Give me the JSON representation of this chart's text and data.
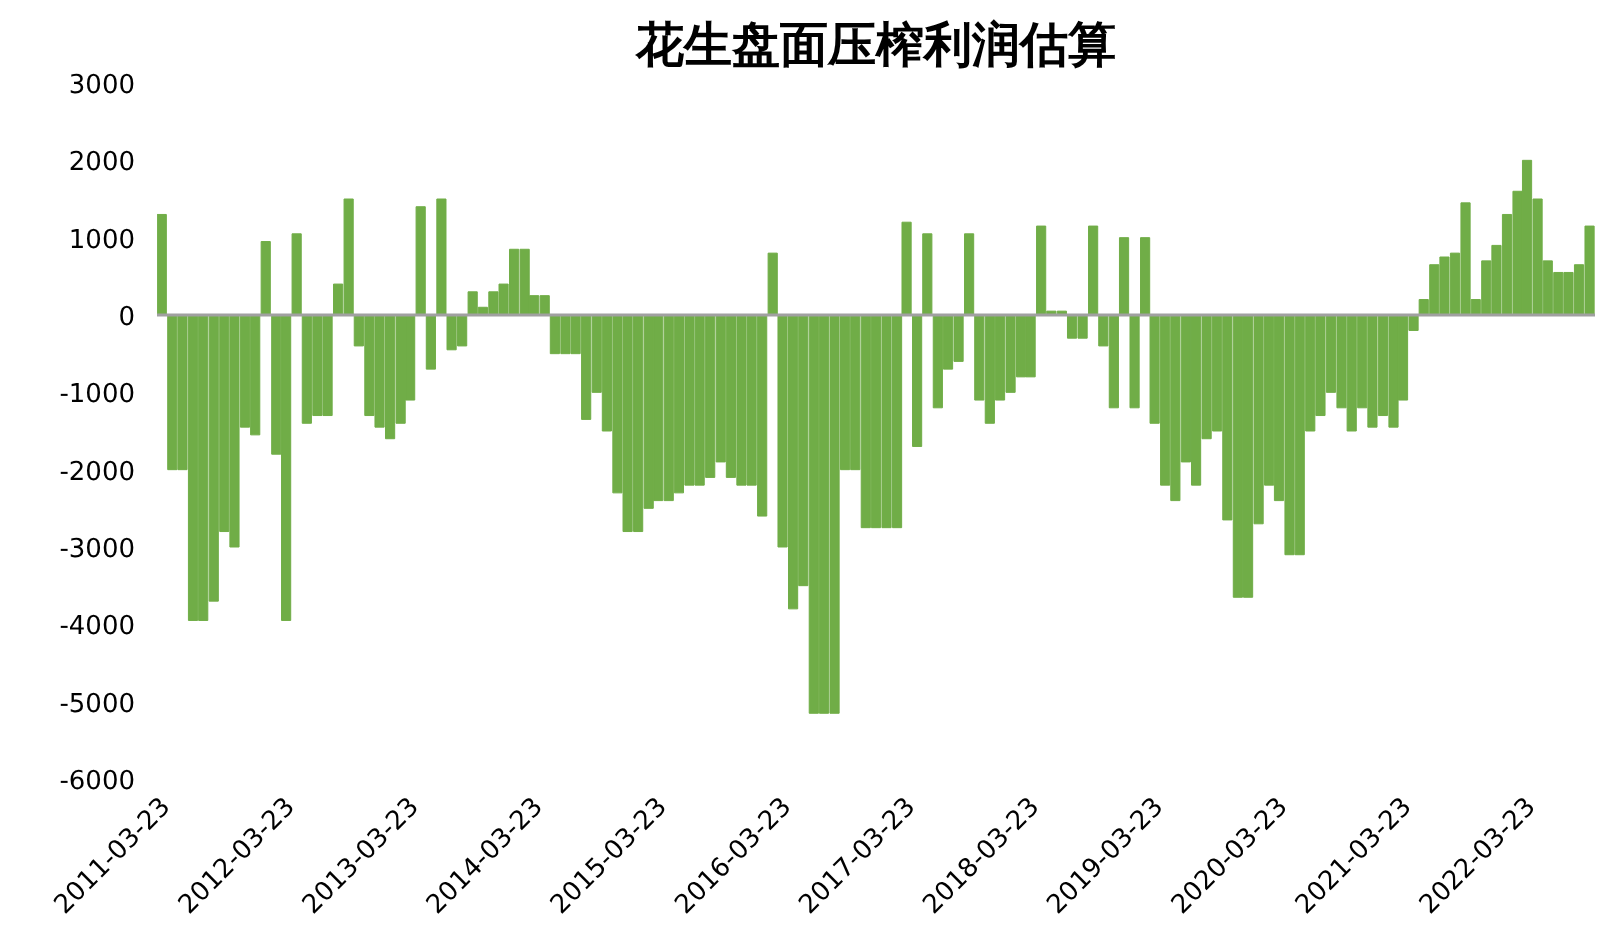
{
  "chart_data": {
    "type": "bar",
    "title": "花生盘面压榨利润估算",
    "x": [
      "2011-03",
      "2011-04",
      "2011-05",
      "2011-06",
      "2011-07",
      "2011-08",
      "2011-09",
      "2011-10",
      "2011-11",
      "2011-12",
      "2012-01",
      "2012-02",
      "2012-03",
      "2012-04",
      "2012-05",
      "2012-06",
      "2012-07",
      "2012-08",
      "2012-09",
      "2012-10",
      "2012-11",
      "2012-12",
      "2013-01",
      "2013-02",
      "2013-03",
      "2013-04",
      "2013-05",
      "2013-06",
      "2013-07",
      "2013-08",
      "2013-09",
      "2013-10",
      "2013-11",
      "2013-12",
      "2014-01",
      "2014-02",
      "2014-03",
      "2014-04",
      "2014-05",
      "2014-06",
      "2014-07",
      "2014-08",
      "2014-09",
      "2014-10",
      "2014-11",
      "2014-12",
      "2015-01",
      "2015-02",
      "2015-03",
      "2015-04",
      "2015-05",
      "2015-06",
      "2015-07",
      "2015-08",
      "2015-09",
      "2015-10",
      "2015-11",
      "2015-12",
      "2016-01",
      "2016-02",
      "2016-03",
      "2016-04",
      "2016-05",
      "2016-06",
      "2016-07",
      "2016-08",
      "2016-09",
      "2016-10",
      "2016-11",
      "2016-12",
      "2017-01",
      "2017-02",
      "2017-03",
      "2017-04",
      "2017-05",
      "2017-06",
      "2017-07",
      "2017-08",
      "2017-09",
      "2017-10",
      "2017-11",
      "2017-12",
      "2018-01",
      "2018-02",
      "2018-03",
      "2018-04",
      "2018-05",
      "2018-06",
      "2018-07",
      "2018-08",
      "2018-09",
      "2018-10",
      "2018-11",
      "2018-12",
      "2019-01",
      "2019-02",
      "2019-03",
      "2019-04",
      "2019-05",
      "2019-06",
      "2019-07",
      "2019-08",
      "2019-09",
      "2019-10",
      "2019-11",
      "2019-12",
      "2020-01",
      "2020-02",
      "2020-03",
      "2020-04",
      "2020-05",
      "2020-06",
      "2020-07",
      "2020-08",
      "2020-09",
      "2020-10",
      "2020-11",
      "2020-12",
      "2021-01",
      "2021-02",
      "2021-03",
      "2021-04",
      "2021-05",
      "2021-06",
      "2021-07",
      "2021-08",
      "2021-09",
      "2021-10",
      "2021-11",
      "2021-12",
      "2022-01",
      "2022-02",
      "2022-03",
      "2022-04",
      "2022-05",
      "2022-06",
      "2022-07",
      "2022-08",
      "2022-09"
    ],
    "values": [
      1300,
      -2000,
      -2000,
      -3950,
      -3950,
      -3700,
      -2800,
      -3000,
      -1450,
      -1550,
      950,
      -1800,
      -3950,
      1050,
      -1400,
      -1300,
      -1300,
      400,
      1500,
      -400,
      -1300,
      -1450,
      -1600,
      -1400,
      -1100,
      1400,
      -700,
      1500,
      -450,
      -400,
      300,
      100,
      300,
      400,
      850,
      850,
      250,
      250,
      -500,
      -500,
      -500,
      -1350,
      -1000,
      -1500,
      -2300,
      -2800,
      -2800,
      -2500,
      -2400,
      -2400,
      -2300,
      -2200,
      -2200,
      -2100,
      -1900,
      -2100,
      -2200,
      -2200,
      -2600,
      800,
      -3000,
      -3800,
      -3500,
      -5150,
      -5150,
      -5150,
      -2000,
      -2000,
      -2750,
      -2750,
      -2750,
      -2750,
      1200,
      -1700,
      1050,
      -1200,
      -700,
      -600,
      1050,
      -1100,
      -1400,
      -1100,
      -1000,
      -800,
      -800,
      1150,
      50,
      50,
      -300,
      -300,
      1150,
      -400,
      -1200,
      1000,
      -1200,
      1000,
      -1400,
      -2200,
      -2400,
      -1900,
      -2200,
      -1600,
      -1500,
      -2650,
      -3650,
      -3650,
      -2700,
      -2200,
      -2400,
      -3100,
      -3100,
      -1500,
      -1300,
      -1000,
      -1200,
      -1500,
      -1200,
      -1450,
      -1300,
      -1450,
      -1100,
      -200,
      200,
      650,
      750,
      800,
      1450,
      200,
      700,
      900,
      1300,
      1600,
      2000,
      1500,
      700,
      550,
      550,
      650,
      1150
    ],
    "color": "#70ad47",
    "xlim": [
      "2011-03-01",
      "2022-10-01"
    ],
    "xticks": [
      "2011-03-23",
      "2012-03-23",
      "2013-03-23",
      "2014-03-23",
      "2015-03-23",
      "2016-03-23",
      "2017-03-23",
      "2018-03-23",
      "2019-03-23",
      "2020-03-23",
      "2021-03-23",
      "2022-03-23"
    ],
    "ylim": [
      -6000,
      3000
    ],
    "yticks": [
      -6000,
      -5000,
      -4000,
      -3000,
      -2000,
      -1000,
      0,
      1000,
      2000,
      3000
    ],
    "ref_lines": [
      {
        "axis": "y",
        "value": 0,
        "color": "#a0a0a0"
      }
    ],
    "grid": false
  }
}
